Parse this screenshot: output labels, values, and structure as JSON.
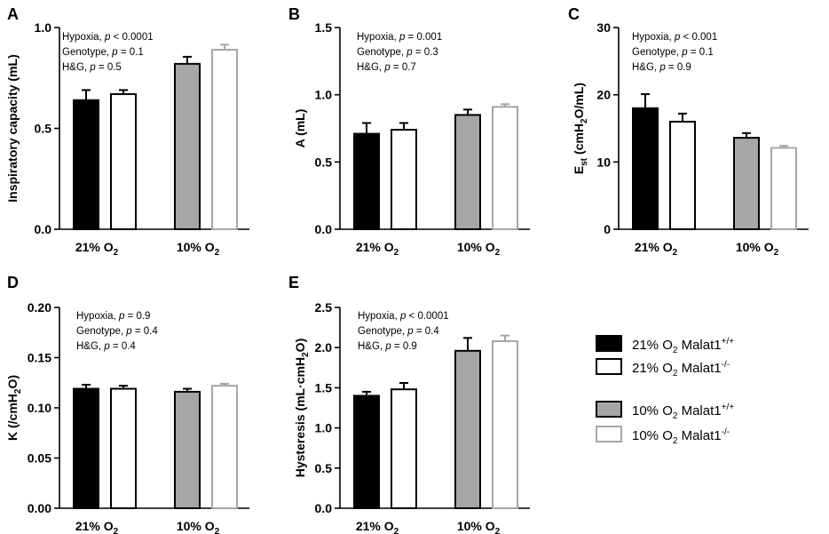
{
  "colors": {
    "wt21": "#000000",
    "ko21": "#ffffff",
    "wt10": "#a6a6a6",
    "ko10": "#ffffff",
    "ko10_stroke": "#a6a6a6",
    "axis": "#000000"
  },
  "groups": [
    {
      "main": "21% O",
      "sub": "2"
    },
    {
      "main": "10% O",
      "sub": "2"
    }
  ],
  "legend": [
    {
      "label": "21% O",
      "sub": "2",
      "gene": " Malat1",
      "sup": "+/+",
      "style": "wt21"
    },
    {
      "label": "21% O",
      "sub": "2",
      "gene": " Malat1",
      "sup": "-/-",
      "style": "ko21"
    },
    {
      "label": "10% O",
      "sub": "2",
      "gene": " Malat1",
      "sup": "+/+",
      "style": "wt10"
    },
    {
      "label": "10% O",
      "sub": "2",
      "gene": " Malat1",
      "sup": "-/-",
      "style": "ko10"
    }
  ],
  "chart_data": [
    {
      "panel": "A",
      "type": "bar",
      "ylabel": [
        {
          "t": "Inspiratory capacity (mL)"
        }
      ],
      "ylim": [
        0,
        1.0
      ],
      "ticks": [
        "0.0",
        "0.5",
        "1.0"
      ],
      "tickvals": [
        0,
        0.5,
        1.0
      ],
      "stats": [
        {
          "name": "Hypoxia",
          "op": " < ",
          "val": "0.0001"
        },
        {
          "name": "Genotype",
          "op": " = ",
          "val": "0.1"
        },
        {
          "name": "H&G",
          "op": " = ",
          "val": "0.5"
        }
      ],
      "series": [
        {
          "name": "21% O2 Malat1+/+",
          "style": "wt21",
          "value": 0.64,
          "err": 0.05
        },
        {
          "name": "21% O2 Malat1-/-",
          "style": "ko21",
          "value": 0.67,
          "err": 0.02
        },
        {
          "name": "10% O2 Malat1+/+",
          "style": "wt10",
          "value": 0.82,
          "err": 0.035
        },
        {
          "name": "10% O2 Malat1-/-",
          "style": "ko10",
          "value": 0.89,
          "err": 0.025
        }
      ]
    },
    {
      "panel": "B",
      "type": "bar",
      "ylabel": [
        {
          "t": "A (mL)"
        }
      ],
      "ylim": [
        0,
        1.5
      ],
      "ticks": [
        "0.0",
        "0.5",
        "1.0",
        "1.5"
      ],
      "tickvals": [
        0,
        0.5,
        1.0,
        1.5
      ],
      "stats": [
        {
          "name": "Hypoxia",
          "op": " = ",
          "val": "0.001"
        },
        {
          "name": "Genotype",
          "op": " = ",
          "val": "0.3"
        },
        {
          "name": "H&G",
          "op": " = ",
          "val": "0.7"
        }
      ],
      "series": [
        {
          "name": "21% O2 Malat1+/+",
          "style": "wt21",
          "value": 0.71,
          "err": 0.08
        },
        {
          "name": "21% O2 Malat1-/-",
          "style": "ko21",
          "value": 0.74,
          "err": 0.05
        },
        {
          "name": "10% O2 Malat1+/+",
          "style": "wt10",
          "value": 0.85,
          "err": 0.04
        },
        {
          "name": "10% O2 Malat1-/-",
          "style": "ko10",
          "value": 0.91,
          "err": 0.02
        }
      ]
    },
    {
      "panel": "C",
      "type": "bar",
      "ylabel": [
        {
          "t": "E"
        },
        {
          "t": "st",
          "sub": true
        },
        {
          "t": " (cmH"
        },
        {
          "t": "2",
          "sub": true
        },
        {
          "t": "O/mL)"
        }
      ],
      "ylim": [
        0,
        30
      ],
      "ticks": [
        "0",
        "10",
        "20",
        "30"
      ],
      "tickvals": [
        0,
        10,
        20,
        30
      ],
      "stats": [
        {
          "name": "Hypoxia",
          "op": " < ",
          "val": "0.001"
        },
        {
          "name": "Genotype",
          "op": " = ",
          "val": "0.1"
        },
        {
          "name": "H&G",
          "op": " = ",
          "val": "0.9"
        }
      ],
      "series": [
        {
          "name": "21% O2 Malat1+/+",
          "style": "wt21",
          "value": 18.0,
          "err": 2.1
        },
        {
          "name": "21% O2 Malat1-/-",
          "style": "ko21",
          "value": 16.0,
          "err": 1.2
        },
        {
          "name": "10% O2 Malat1+/+",
          "style": "wt10",
          "value": 13.6,
          "err": 0.7
        },
        {
          "name": "10% O2 Malat1-/-",
          "style": "ko10",
          "value": 12.1,
          "err": 0.3
        }
      ]
    },
    {
      "panel": "D",
      "type": "bar",
      "ylabel": [
        {
          "t": "K (/cmH"
        },
        {
          "t": "2",
          "sub": true
        },
        {
          "t": "O)"
        }
      ],
      "ylim": [
        0,
        0.2
      ],
      "ticks": [
        "0.00",
        "0.05",
        "0.10",
        "0.15",
        "0.20"
      ],
      "tickvals": [
        0,
        0.05,
        0.1,
        0.15,
        0.2
      ],
      "stats": [
        {
          "name": "Hypoxia",
          "op": " = ",
          "val": "0.9"
        },
        {
          "name": "Genotype",
          "op": " = ",
          "val": "0.4"
        },
        {
          "name": "H&G",
          "op": " = ",
          "val": "0.4"
        }
      ],
      "series": [
        {
          "name": "21% O2 Malat1+/+",
          "style": "wt21",
          "value": 0.119,
          "err": 0.004
        },
        {
          "name": "21% O2 Malat1-/-",
          "style": "ko21",
          "value": 0.119,
          "err": 0.003
        },
        {
          "name": "10% O2 Malat1+/+",
          "style": "wt10",
          "value": 0.116,
          "err": 0.003
        },
        {
          "name": "10% O2 Malat1-/-",
          "style": "ko10",
          "value": 0.122,
          "err": 0.002
        }
      ]
    },
    {
      "panel": "E",
      "type": "bar",
      "ylabel": [
        {
          "t": "Hysteresis (mL·cmH"
        },
        {
          "t": "2",
          "sub": true
        },
        {
          "t": "O)"
        }
      ],
      "ylim": [
        0,
        2.5
      ],
      "ticks": [
        "0.0",
        "0.5",
        "1.0",
        "1.5",
        "2.0",
        "2.5"
      ],
      "tickvals": [
        0,
        0.5,
        1.0,
        1.5,
        2.0,
        2.5
      ],
      "stats": [
        {
          "name": "Hypoxia",
          "op": " < ",
          "val": "0.0001"
        },
        {
          "name": "Genotype",
          "op": " = ",
          "val": "0.4"
        },
        {
          "name": "H&G",
          "op": " = ",
          "val": "0.9"
        }
      ],
      "series": [
        {
          "name": "21% O2 Malat1+/+",
          "style": "wt21",
          "value": 1.4,
          "err": 0.05
        },
        {
          "name": "21% O2 Malat1-/-",
          "style": "ko21",
          "value": 1.48,
          "err": 0.08
        },
        {
          "name": "10% O2 Malat1+/+",
          "style": "wt10",
          "value": 1.96,
          "err": 0.16
        },
        {
          "name": "10% O2 Malat1-/-",
          "style": "ko10",
          "value": 2.08,
          "err": 0.07
        }
      ]
    }
  ]
}
